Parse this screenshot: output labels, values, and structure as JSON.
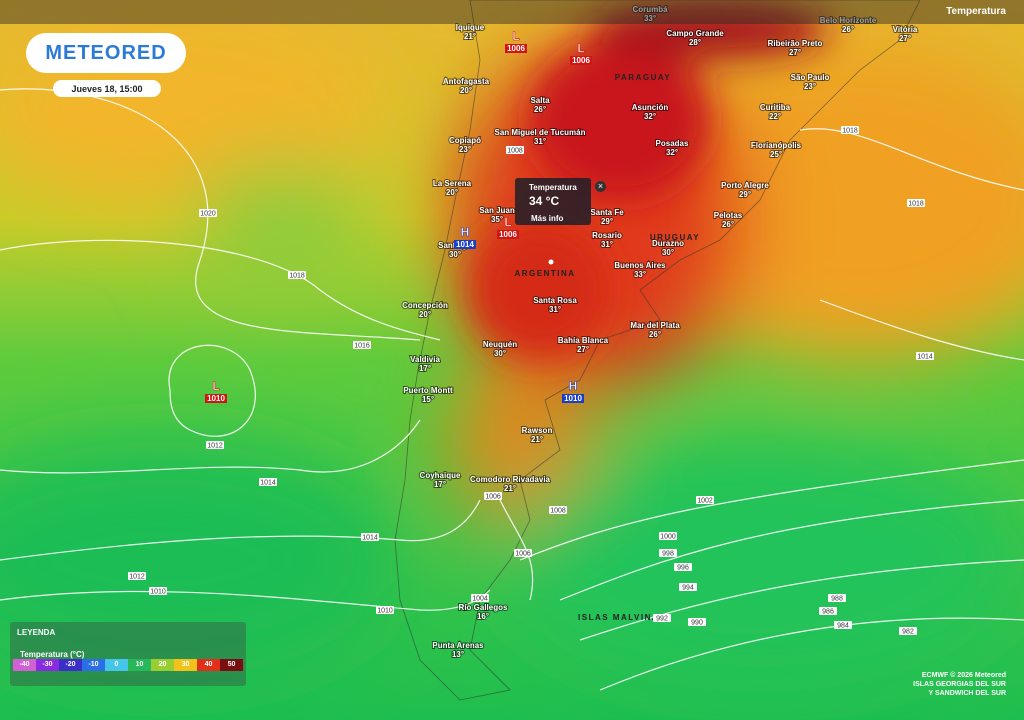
{
  "header": {
    "logo": "METEORED",
    "date": "Jueves 18, 15:00",
    "layer": "Temperatura"
  },
  "popup": {
    "title": "Temperatura",
    "value": "34 °C",
    "link": "Más info"
  },
  "countries": [
    "PARAGUAY",
    "URUGUAY",
    "ARGENTINA",
    "ISLAS MALVINAS"
  ],
  "cities": [
    {
      "name": "Corumbá",
      "temp": "33°"
    },
    {
      "name": "Campo Grande",
      "temp": "28°"
    },
    {
      "name": "Ribeirão Preto",
      "temp": "27°"
    },
    {
      "name": "Belo Horizonte",
      "temp": "26°"
    },
    {
      "name": "Vitória",
      "temp": "27°"
    },
    {
      "name": "São Paulo",
      "temp": "23°"
    },
    {
      "name": "Curitiba",
      "temp": "22°"
    },
    {
      "name": "Florianópolis",
      "temp": "25°"
    },
    {
      "name": "Porto Alegre",
      "temp": "29°"
    },
    {
      "name": "Pelotas",
      "temp": "26°"
    },
    {
      "name": "Asunción",
      "temp": "32°"
    },
    {
      "name": "Posadas",
      "temp": "32°"
    },
    {
      "name": "Iquique",
      "temp": "21°"
    },
    {
      "name": "Antofagasta",
      "temp": "20°"
    },
    {
      "name": "Copiapó",
      "temp": "23°"
    },
    {
      "name": "La Serena",
      "temp": "20°"
    },
    {
      "name": "Santiago",
      "temp": "30°"
    },
    {
      "name": "Salta",
      "temp": "26°"
    },
    {
      "name": "San Miguel de Tucumán",
      "temp": "31°"
    },
    {
      "name": "San Juan",
      "temp": "35°"
    },
    {
      "name": "Santa Fe",
      "temp": "29°"
    },
    {
      "name": "Rosario",
      "temp": "31°"
    },
    {
      "name": "Durazno",
      "temp": "30°"
    },
    {
      "name": "Buenos Aires",
      "temp": "33°"
    },
    {
      "name": "Concepción",
      "temp": "20°"
    },
    {
      "name": "Santa Rosa",
      "temp": "31°"
    },
    {
      "name": "Mar del Plata",
      "temp": "26°"
    },
    {
      "name": "Neuquén",
      "temp": "30°"
    },
    {
      "name": "Bahía Blanca",
      "temp": "27°"
    },
    {
      "name": "Valdivia",
      "temp": "17°"
    },
    {
      "name": "Puerto Montt",
      "temp": "15°"
    },
    {
      "name": "Rawson",
      "temp": "21°"
    },
    {
      "name": "Coyhaique",
      "temp": "17°"
    },
    {
      "name": "Comodoro Rivadavia",
      "temp": "21°"
    },
    {
      "name": "Río Gallegos",
      "temp": "16°"
    },
    {
      "name": "Punta Arenas",
      "temp": "13°"
    }
  ],
  "pressure_centers": [
    {
      "type": "L",
      "value": 1006
    },
    {
      "type": "L",
      "value": 1006
    },
    {
      "type": "H",
      "value": 1014
    },
    {
      "type": "L",
      "value": 1006
    },
    {
      "type": "L",
      "value": 1010
    },
    {
      "type": "H",
      "value": 1010
    }
  ],
  "isobar_labels": [
    1020,
    1018,
    1016,
    1012,
    1014,
    1014,
    1012,
    1010,
    1010,
    1008,
    1006,
    1006,
    1004,
    1002,
    1000,
    998,
    996,
    994,
    992,
    990,
    988,
    986,
    984,
    982,
    1018,
    1018,
    1014,
    1008
  ],
  "legend": {
    "title": "LEYENDA",
    "unit": "Temperatura (°C)",
    "ticks": [
      -40,
      -30,
      -20,
      -10,
      0,
      10,
      20,
      30,
      40,
      50
    ]
  },
  "attribution": [
    "ECMWF © 2026 Meteored",
    "ISLAS GEORGIAS DEL SUR",
    "Y SANDWICH DEL SUR"
  ]
}
